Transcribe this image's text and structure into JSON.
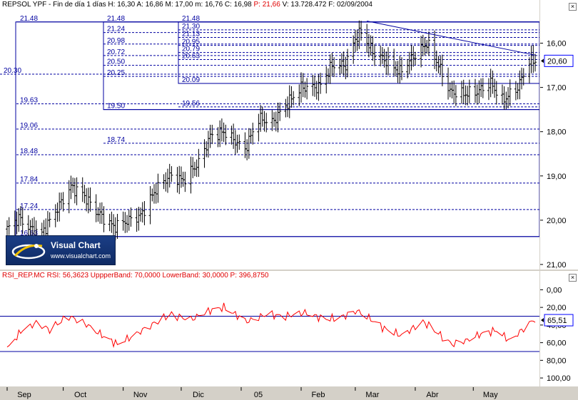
{
  "price_panel": {
    "header": {
      "symbol": "REPSOL YPF",
      "period": "Fin de día 1 días",
      "h_label": "H:",
      "h_value": "16,30",
      "a_label": "A:",
      "a_value": "16,86",
      "m_label": "M:",
      "m_value": "17,00",
      "min_label": "m:",
      "min_value": "16,76",
      "c_label": "C:",
      "c_value": "16,98",
      "p_label": "P:",
      "p_value": "21,66",
      "v_label": "V:",
      "v_value": "13.728.472",
      "f_label": "F:",
      "f_value": "02/09/2004"
    },
    "axis_labels": [
      "21,00",
      "20,00",
      "19,00",
      "18,00",
      "17,00",
      "16,00"
    ],
    "last_price_tag": "20,60"
  },
  "rsi_panel": {
    "header": {
      "name": "RSI_REP.MC",
      "rsi_label": "RSI:",
      "rsi_value": "56,3623",
      "upper_label": "UppperBand:",
      "upper_value": "70,0000",
      "lower_label": "LowerBand:",
      "lower_value": "30,0000",
      "p_label": "P:",
      "p_value": "396,8750"
    },
    "axis_labels": [
      "100,00",
      "80,00",
      "60,00",
      "40,00",
      "20,00",
      "0,00"
    ],
    "last_value_tag": "65,51"
  },
  "x_axis": {
    "labels": [
      "Sep",
      "Oct",
      "Nov",
      "Dic",
      "05",
      "Feb",
      "Mar",
      "Abr",
      "May"
    ]
  },
  "logo": {
    "title": "Visual Chart",
    "url": "www.visualchart.com"
  },
  "colors": {
    "bars": "#000000",
    "lines": "#0000a0",
    "rsi_line": "#ff0000",
    "tag_border": "#0000ff"
  },
  "chart_data": [
    {
      "type": "bar",
      "subtype": "ohlc",
      "title": "REPSOL YPF",
      "ylim": [
        15.95,
        21.75
      ],
      "y_ticks": [
        16,
        17,
        18,
        19,
        20,
        21
      ],
      "anchors": [
        [
          "2004-09-02",
          16.8
        ],
        [
          "2004-09-08",
          17.05
        ],
        [
          "2004-09-14",
          16.8
        ],
        [
          "2004-09-20",
          16.7
        ],
        [
          "2004-09-27",
          17.2
        ],
        [
          "2004-10-05",
          17.75
        ],
        [
          "2004-10-11",
          17.6
        ],
        [
          "2004-10-18",
          17.2
        ],
        [
          "2004-10-27",
          16.85
        ],
        [
          "2004-11-04",
          17.0
        ],
        [
          "2004-11-10",
          17.1
        ],
        [
          "2004-11-18",
          17.7
        ],
        [
          "2004-11-25",
          18.0
        ],
        [
          "2004-12-02",
          17.9
        ],
        [
          "2004-12-10",
          18.3
        ],
        [
          "2004-12-16",
          18.9
        ],
        [
          "2004-12-23",
          19.0
        ],
        [
          "2005-01-03",
          18.6
        ],
        [
          "2005-01-10",
          19.3
        ],
        [
          "2005-01-17",
          19.2
        ],
        [
          "2005-01-24",
          19.6
        ],
        [
          "2005-02-01",
          20.0
        ],
        [
          "2005-02-10",
          20.0
        ],
        [
          "2005-02-17",
          20.5
        ],
        [
          "2005-02-24",
          20.5
        ],
        [
          "2005-03-01",
          21.1
        ],
        [
          "2005-03-04",
          21.25
        ],
        [
          "2005-03-10",
          20.8
        ],
        [
          "2005-03-17",
          20.6
        ],
        [
          "2005-03-24",
          20.35
        ],
        [
          "2005-03-31",
          20.7
        ],
        [
          "2005-04-07",
          21.0
        ],
        [
          "2005-04-12",
          20.6
        ],
        [
          "2005-04-19",
          19.9
        ],
        [
          "2005-04-26",
          19.85
        ],
        [
          "2005-05-03",
          19.9
        ],
        [
          "2005-05-10",
          20.1
        ],
        [
          "2005-05-16",
          19.7
        ],
        [
          "2005-05-24",
          20.0
        ],
        [
          "2005-05-30",
          20.6
        ]
      ],
      "hlines": [
        [
          21.48,
          "21.48"
        ],
        [
          21.3,
          "21.30"
        ],
        [
          21.24,
          "21.24"
        ],
        [
          21.13,
          "21.13"
        ],
        [
          20.98,
          "20.98"
        ],
        [
          20.95,
          "20.95"
        ],
        [
          20.79,
          "20.79"
        ],
        [
          20.72,
          "20.72"
        ],
        [
          20.63,
          "20.63"
        ],
        [
          20.5,
          "20.50"
        ],
        [
          20.3,
          "20.30"
        ],
        [
          20.25,
          "20.25"
        ],
        [
          20.09,
          "20.09"
        ],
        [
          19.63,
          "19.63"
        ],
        [
          19.56,
          "19.56"
        ],
        [
          19.5,
          "19.50"
        ],
        [
          19.06,
          "19.06"
        ],
        [
          18.74,
          "18.74"
        ],
        [
          18.48,
          "18.48"
        ],
        [
          17.84,
          "17.84"
        ],
        [
          17.24,
          "17.24"
        ],
        [
          16.63,
          "16.63"
        ]
      ],
      "trendline": [
        [
          "2005-03-07",
          21.5
        ],
        [
          "2005-06-02",
          20.73
        ]
      ]
    },
    {
      "type": "line",
      "title": "RSI_REP.MC",
      "ylim": [
        -8,
        110
      ],
      "y_ticks": [
        0,
        20,
        40,
        60,
        80,
        100
      ],
      "bands": [
        70,
        30
      ],
      "anchors": [
        [
          "2004-09-02",
          33
        ],
        [
          "2004-09-10",
          55
        ],
        [
          "2004-09-17",
          62
        ],
        [
          "2004-09-24",
          55
        ],
        [
          "2004-10-04",
          70
        ],
        [
          "2004-10-12",
          62
        ],
        [
          "2004-10-20",
          50
        ],
        [
          "2004-10-29",
          38
        ],
        [
          "2004-11-08",
          50
        ],
        [
          "2004-11-17",
          62
        ],
        [
          "2004-11-26",
          72
        ],
        [
          "2004-12-06",
          66
        ],
        [
          "2004-12-15",
          76
        ],
        [
          "2004-12-23",
          80
        ],
        [
          "2005-01-04",
          64
        ],
        [
          "2005-01-14",
          72
        ],
        [
          "2005-01-24",
          70
        ],
        [
          "2005-02-03",
          74
        ],
        [
          "2005-02-14",
          66
        ],
        [
          "2005-02-23",
          70
        ],
        [
          "2005-03-02",
          76
        ],
        [
          "2005-03-08",
          68
        ],
        [
          "2005-03-16",
          56
        ],
        [
          "2005-03-25",
          48
        ],
        [
          "2005-04-05",
          64
        ],
        [
          "2005-04-12",
          52
        ],
        [
          "2005-04-20",
          38
        ],
        [
          "2005-04-27",
          42
        ],
        [
          "2005-05-05",
          50
        ],
        [
          "2005-05-13",
          54
        ],
        [
          "2005-05-20",
          42
        ],
        [
          "2005-05-27",
          56
        ],
        [
          "2005-06-01",
          65.51
        ]
      ]
    }
  ]
}
